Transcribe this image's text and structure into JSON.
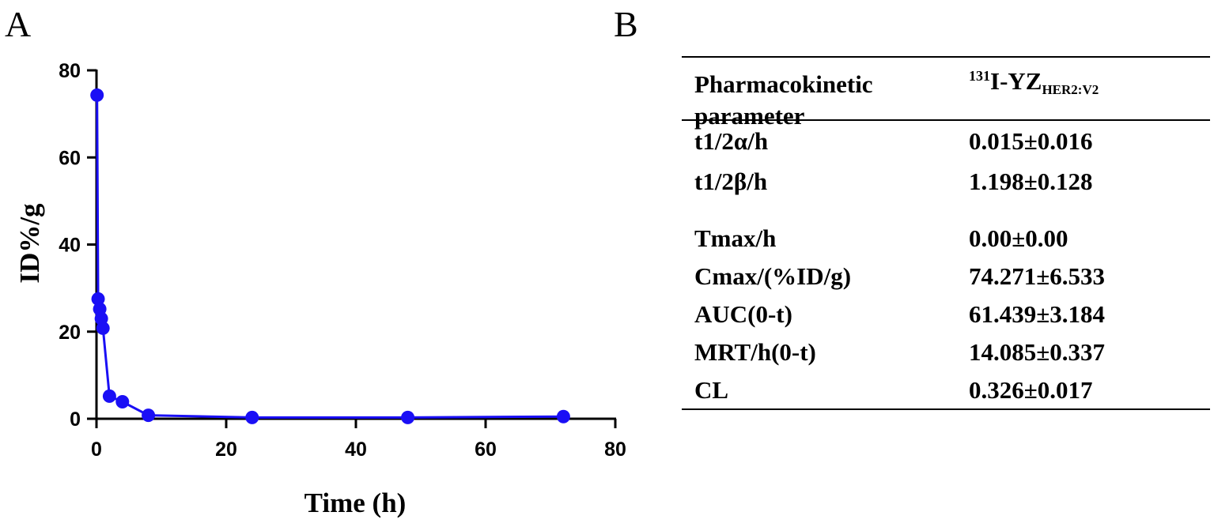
{
  "panels": {
    "a": "A",
    "b": "B"
  },
  "chart_data": {
    "type": "line",
    "xlabel": "Time (h)",
    "ylabel": "ID%/g",
    "xlim": [
      0,
      80
    ],
    "ylim": [
      0,
      80
    ],
    "xticks": [
      "0",
      "20",
      "40",
      "60",
      "80"
    ],
    "yticks": [
      "0",
      "20",
      "40",
      "60",
      "80"
    ],
    "grid": false,
    "color": "#1a0ff5",
    "series": [
      {
        "x": [
          0.083,
          0.25,
          0.5,
          0.75,
          1,
          2,
          4,
          8,
          24,
          48,
          72
        ],
        "values": [
          74.3,
          27.5,
          25.2,
          23.0,
          20.8,
          5.2,
          3.9,
          0.8,
          0.3,
          0.3,
          0.5
        ]
      }
    ]
  },
  "table": {
    "header": {
      "param_line1": "Pharmacokinetic",
      "param_line2": "parameter",
      "agent_sup": "131",
      "agent_main": "I-YZ",
      "agent_sub": "HER2:V2"
    },
    "rows": [
      {
        "param": "t1/2α/h",
        "value": "0.015±0.016"
      },
      {
        "param": "t1/2β/h",
        "value": "1.198±0.128"
      },
      {
        "param": "Tmax/h",
        "value": "0.00±0.00"
      },
      {
        "param": "Cmax/(%ID/g)",
        "value": "74.271±6.533"
      },
      {
        "param": "AUC(0-t)",
        "value": "61.439±3.184"
      },
      {
        "param": "MRT/h(0-t)",
        "value": "14.085±0.337"
      },
      {
        "param": "CL",
        "value": "0.326±0.017"
      }
    ]
  }
}
